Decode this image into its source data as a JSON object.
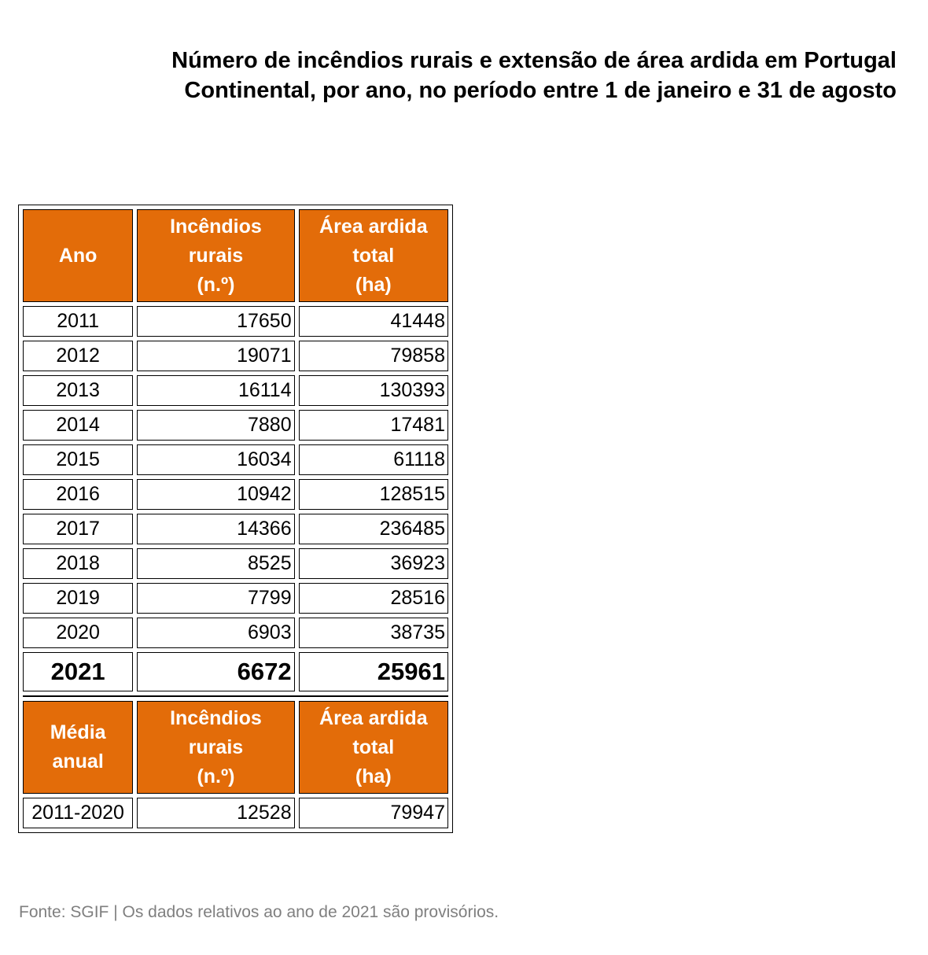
{
  "title": {
    "line1": "Número de incêndios rurais e extensão de área ardida em Portugal",
    "line2": "Continental, por ano, no período entre 1 de janeiro e 31 de agosto"
  },
  "headers": {
    "year": "Ano",
    "fires": [
      "Incêndios",
      "rurais",
      "(n.º)"
    ],
    "area": [
      "Área ardida",
      "total",
      "(ha)"
    ]
  },
  "average_headers": {
    "period": [
      "Média",
      "anual"
    ],
    "fires": [
      "Incêndios",
      "rurais",
      "(n.º)"
    ],
    "area": [
      "Área ardida",
      "total",
      "(ha)"
    ]
  },
  "chart_data": {
    "type": "table",
    "title": "Número de incêndios rurais e extensão de área ardida em Portugal Continental, por ano, no período entre 1 de janeiro e 31 de agosto",
    "columns": [
      "Ano",
      "Incêndios rurais (n.º)",
      "Área ardida total (ha)"
    ],
    "rows": [
      [
        "2011",
        "17650",
        "41448"
      ],
      [
        "2012",
        "19071",
        "79858"
      ],
      [
        "2013",
        "16114",
        "130393"
      ],
      [
        "2014",
        "7880",
        "17481"
      ],
      [
        "2015",
        "16034",
        "61118"
      ],
      [
        "2016",
        "10942",
        "128515"
      ],
      [
        "2017",
        "14366",
        "236485"
      ],
      [
        "2018",
        "8525",
        "36923"
      ],
      [
        "2019",
        "7799",
        "28516"
      ],
      [
        "2020",
        "6903",
        "38735"
      ]
    ],
    "current": [
      "2021",
      "6672",
      "25961"
    ],
    "average": {
      "columns": [
        "Média anual",
        "Incêndios rurais (n.º)",
        "Área ardida total (ha)"
      ],
      "row": [
        "2011-2020",
        "12528",
        "79947"
      ]
    }
  },
  "source": "Fonte: SGIF | Os dados relativos ao ano de 2021 são provisórios.",
  "colors": {
    "header_bg": "#e36c09",
    "header_text": "#ffffff",
    "source_text": "#7f7f7f"
  }
}
